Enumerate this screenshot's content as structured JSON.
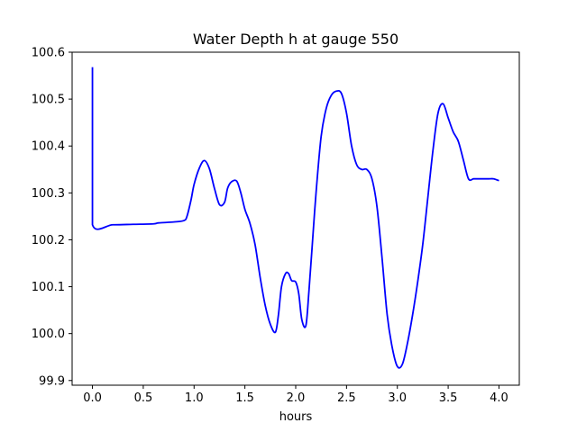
{
  "chart_data": {
    "type": "line",
    "title": "Water Depth h at gauge 550",
    "xlabel": "hours",
    "ylabel": "",
    "xlim": [
      -0.2,
      4.2
    ],
    "ylim": [
      99.89,
      100.6
    ],
    "xticks": [
      0.0,
      0.5,
      1.0,
      1.5,
      2.0,
      2.5,
      3.0,
      3.5,
      4.0
    ],
    "xtick_labels": [
      "0.0",
      "0.5",
      "1.0",
      "1.5",
      "2.0",
      "2.5",
      "3.0",
      "3.5",
      "4.0"
    ],
    "yticks": [
      99.9,
      100.0,
      100.1,
      100.2,
      100.3,
      100.4,
      100.5,
      100.6
    ],
    "ytick_labels": [
      "99.9",
      "100.0",
      "100.1",
      "100.2",
      "100.3",
      "100.4",
      "100.5",
      "100.6"
    ],
    "grid": false,
    "legend": "none",
    "series": [
      {
        "color": "#0000ff",
        "x": [
          0.0,
          0.0,
          0.0,
          0.2,
          0.4,
          0.6,
          0.65,
          0.8,
          0.9,
          0.93,
          0.97,
          1.0,
          1.05,
          1.1,
          1.15,
          1.2,
          1.25,
          1.3,
          1.33,
          1.37,
          1.42,
          1.46,
          1.5,
          1.55,
          1.6,
          1.65,
          1.7,
          1.75,
          1.8,
          1.83,
          1.86,
          1.9,
          1.93,
          1.96,
          2.0,
          2.03,
          2.06,
          2.1,
          2.13,
          2.16,
          2.2,
          2.25,
          2.3,
          2.35,
          2.4,
          2.45,
          2.5,
          2.55,
          2.6,
          2.65,
          2.7,
          2.75,
          2.8,
          2.85,
          2.9,
          2.95,
          3.0,
          3.05,
          3.1,
          3.15,
          3.2,
          3.25,
          3.3,
          3.35,
          3.4,
          3.45,
          3.5,
          3.55,
          3.6,
          3.65,
          3.7,
          3.75,
          3.8,
          3.85,
          3.9,
          3.95,
          4.0
        ],
        "y": [
          100.568,
          100.36,
          100.232,
          100.232,
          100.233,
          100.234,
          100.236,
          100.238,
          100.241,
          100.25,
          100.285,
          100.318,
          100.352,
          100.369,
          100.352,
          100.31,
          100.275,
          100.28,
          100.31,
          100.324,
          100.325,
          100.3,
          100.265,
          100.235,
          100.19,
          100.12,
          100.06,
          100.02,
          100.003,
          100.04,
          100.1,
          100.128,
          100.128,
          100.113,
          100.11,
          100.085,
          100.03,
          100.017,
          100.09,
          100.18,
          100.3,
          100.42,
          100.48,
          100.508,
          100.517,
          100.512,
          100.47,
          100.4,
          100.36,
          100.35,
          100.35,
          100.33,
          100.27,
          100.16,
          100.04,
          99.97,
          99.93,
          99.935,
          99.98,
          100.04,
          100.11,
          100.19,
          100.29,
          100.39,
          100.47,
          100.49,
          100.46,
          100.43,
          100.41,
          100.37,
          100.33,
          100.33,
          100.33,
          100.33,
          100.33,
          100.33,
          100.326
        ]
      }
    ]
  }
}
